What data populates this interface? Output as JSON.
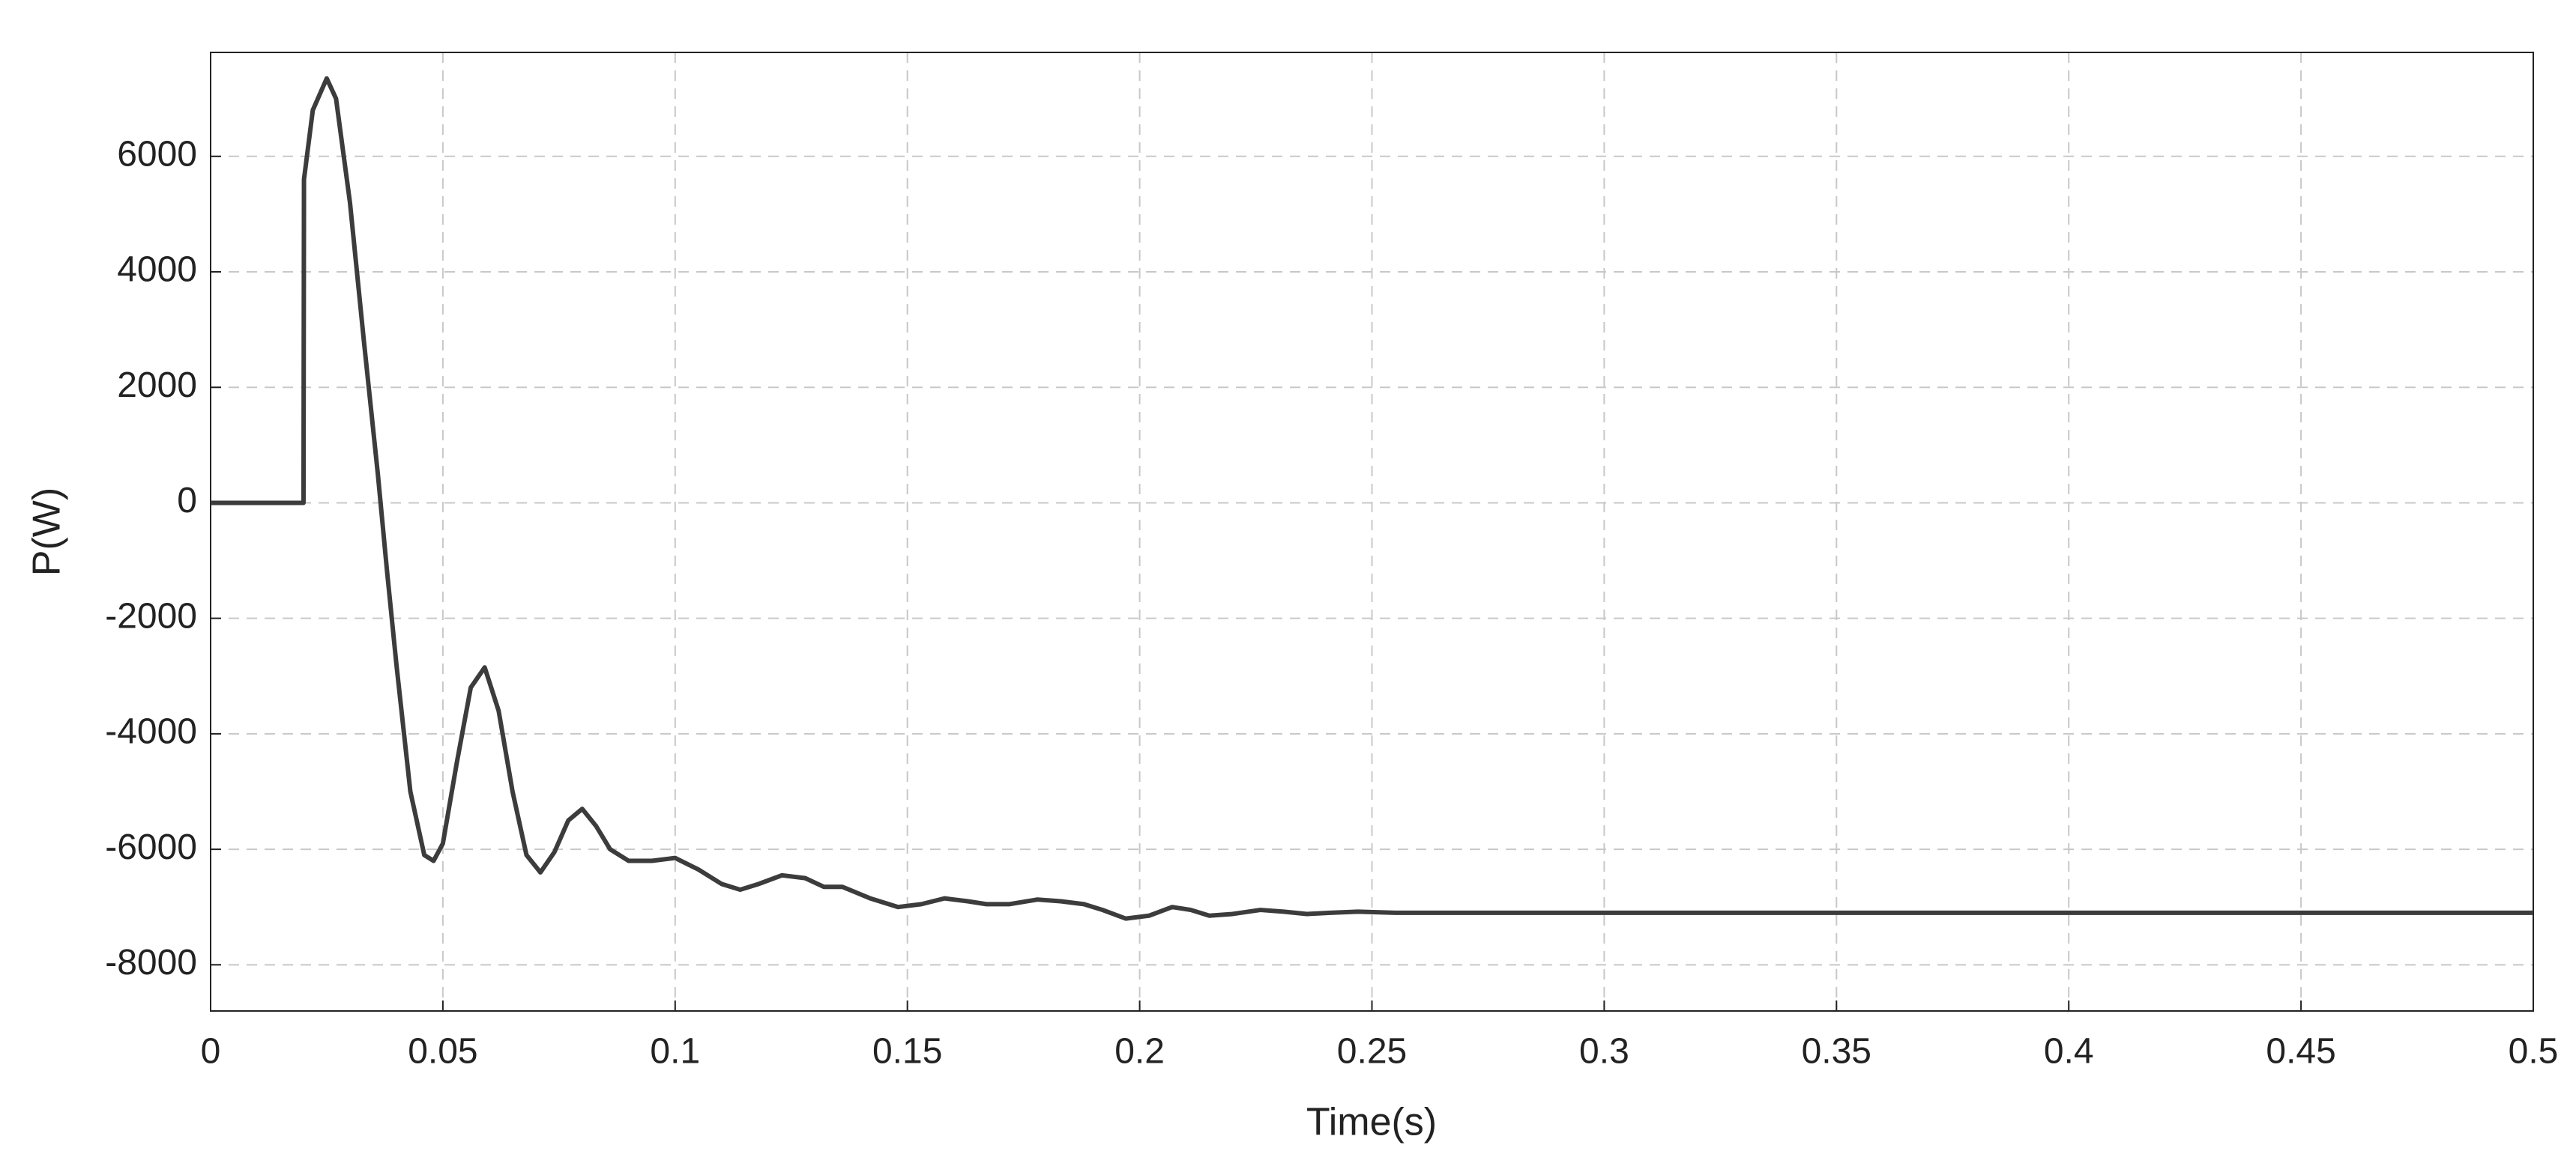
{
  "chart_data": {
    "type": "line",
    "xlabel": "Time(s)",
    "ylabel": "P(W)",
    "x": [
      0,
      0.02,
      0.0201,
      0.022,
      0.025,
      0.027,
      0.03,
      0.033,
      0.036,
      0.038,
      0.04,
      0.043,
      0.046,
      0.048,
      0.05,
      0.053,
      0.056,
      0.059,
      0.062,
      0.065,
      0.068,
      0.071,
      0.074,
      0.077,
      0.08,
      0.083,
      0.086,
      0.09,
      0.095,
      0.1,
      0.105,
      0.11,
      0.114,
      0.118,
      0.123,
      0.128,
      0.132,
      0.136,
      0.142,
      0.148,
      0.153,
      0.158,
      0.163,
      0.167,
      0.172,
      0.178,
      0.183,
      0.188,
      0.192,
      0.197,
      0.202,
      0.207,
      0.211,
      0.215,
      0.22,
      0.226,
      0.231,
      0.236,
      0.241,
      0.247,
      0.255,
      0.265,
      0.3,
      0.4,
      0.5
    ],
    "series": [
      {
        "name": "P",
        "color": "#3c3c3c",
        "values": [
          0,
          0,
          5600,
          6800,
          7350,
          7000,
          5200,
          2800,
          500,
          -1200,
          -2800,
          -5000,
          -6100,
          -6200,
          -5900,
          -4500,
          -3200,
          -2850,
          -3600,
          -5000,
          -6100,
          -6400,
          -6050,
          -5500,
          -5300,
          -5600,
          -6000,
          -6200,
          -6200,
          -6150,
          -6350,
          -6600,
          -6700,
          -6600,
          -6450,
          -6500,
          -6650,
          -6650,
          -6850,
          -7000,
          -6950,
          -6850,
          -6900,
          -6950,
          -6950,
          -6870,
          -6900,
          -6950,
          -7050,
          -7200,
          -7150,
          -7000,
          -7050,
          -7150,
          -7120,
          -7050,
          -7080,
          -7120,
          -7100,
          -7080,
          -7100,
          -7100,
          -7100,
          -7100,
          -7100
        ]
      }
    ],
    "xlim": [
      0,
      0.5
    ],
    "ylim": [
      -8800,
      7800
    ],
    "xticks": [
      0,
      0.05,
      0.1,
      0.15,
      0.2,
      0.25,
      0.3,
      0.35,
      0.4,
      0.45,
      0.5
    ],
    "yticks": [
      -8000,
      -6000,
      -4000,
      -2000,
      0,
      2000,
      4000,
      6000
    ],
    "grid": true
  }
}
